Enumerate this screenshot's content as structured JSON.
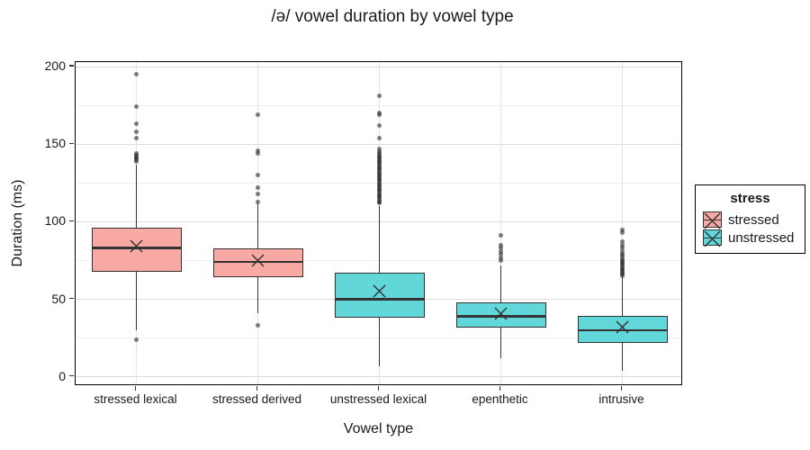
{
  "chart_data": {
    "type": "boxplot",
    "title": "/ə/ vowel duration by vowel type",
    "xlabel": "Vowel type",
    "ylabel": "Duration (ms)",
    "ylim": [
      -6,
      203
    ],
    "yticks": [
      0,
      50,
      100,
      150,
      200
    ],
    "yminor": [
      25,
      75,
      125,
      175
    ],
    "grid": "on",
    "legend_position": "right",
    "legend": {
      "title": "stress",
      "items": [
        {
          "label": "stressed",
          "color": "#F9A9A3"
        },
        {
          "label": "unstressed",
          "color": "#62D7DA"
        }
      ]
    },
    "categories": [
      "stressed lexical",
      "stressed derived",
      "unstressed lexical",
      "epenthetic",
      "intrusive"
    ],
    "boxes": [
      {
        "category": "stressed lexical",
        "group": "stressed",
        "fill": "#F9A9A3",
        "whisker_low": 30,
        "q1": 68,
        "median": 83,
        "q3": 96,
        "whisker_high": 137,
        "mean": 84,
        "outliers": [
          195,
          174,
          163,
          158,
          154,
          144,
          143,
          142,
          141,
          140,
          139,
          24
        ]
      },
      {
        "category": "stressed derived",
        "group": "stressed",
        "fill": "#F9A9A3",
        "whisker_low": 41,
        "q1": 64,
        "median": 74,
        "q3": 83,
        "whisker_high": 112,
        "mean": 75,
        "outliers": [
          169,
          146,
          144,
          130,
          122,
          118,
          113,
          33
        ]
      },
      {
        "category": "unstressed lexical",
        "group": "unstressed",
        "fill": "#62D7DA",
        "whisker_low": 7,
        "q1": 38,
        "median": 50,
        "q3": 67,
        "whisker_high": 110,
        "mean": 55,
        "outliers": [
          181,
          170,
          169,
          162,
          154,
          147,
          145,
          144,
          143,
          142,
          141,
          140,
          139,
          138,
          137,
          136,
          135,
          134,
          133,
          132,
          131,
          130,
          129,
          128,
          127,
          126,
          125,
          124,
          123,
          122,
          121,
          120,
          119,
          118,
          117,
          116,
          115,
          114,
          113,
          112
        ]
      },
      {
        "category": "epenthetic",
        "group": "unstressed",
        "fill": "#62D7DA",
        "whisker_low": 12,
        "q1": 32,
        "median": 39,
        "q3": 48,
        "whisker_high": 72,
        "mean": 41,
        "outliers": [
          91,
          85,
          83,
          81,
          79,
          77,
          75
        ]
      },
      {
        "category": "intrusive",
        "group": "unstressed",
        "fill": "#62D7DA",
        "whisker_low": 4,
        "q1": 22,
        "median": 30,
        "q3": 39,
        "whisker_high": 64,
        "mean": 32,
        "outliers": [
          95,
          93,
          87,
          85,
          83,
          81,
          79,
          78,
          76,
          75,
          74,
          73,
          72,
          71,
          70,
          69,
          68,
          67,
          66,
          65
        ]
      }
    ],
    "style": {
      "line_color": "#333333",
      "grid_major_color": "#dbdbdb",
      "grid_minor_color": "#efefef",
      "outlier_color": "#2d2d2d"
    }
  }
}
